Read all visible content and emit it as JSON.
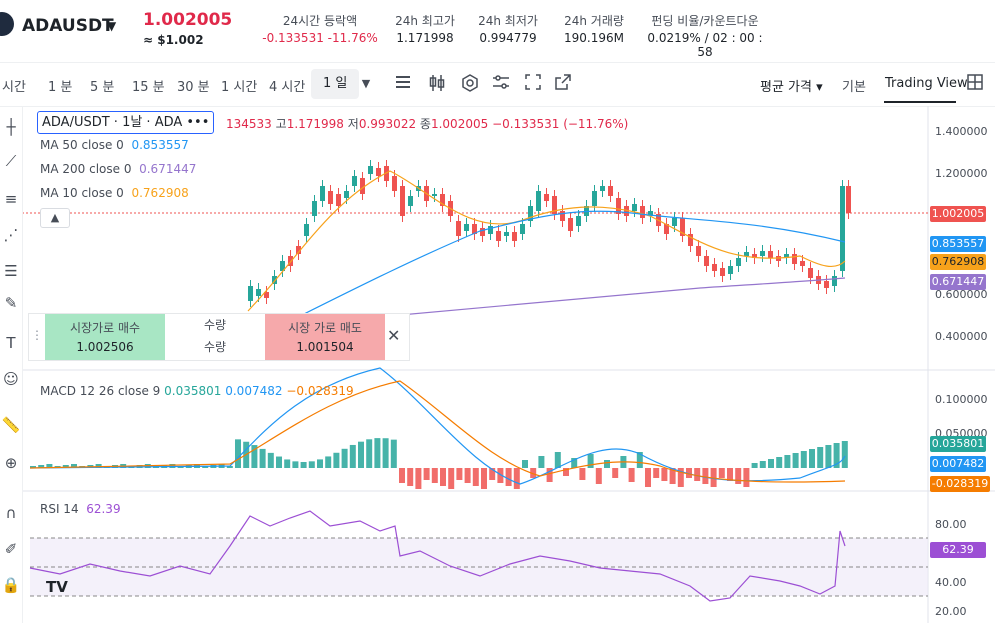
{
  "header": {
    "symbol": "ADAUSDT",
    "price": "1.002005",
    "price_usd": "≈ $1.002",
    "stats": [
      {
        "label": "24시간 등락액",
        "value": "-0.133531  -11.76%"
      },
      {
        "label": "24h 최고가",
        "value": "1.171998"
      },
      {
        "label": "24h 최저가",
        "value": "0.994779"
      },
      {
        "label": "24h 거래량",
        "value": "190.196M"
      },
      {
        "label": "펀딩 비율/카운트다운",
        "value": "0.0219% / 02 : 00 : 58"
      }
    ]
  },
  "toolbar": {
    "timeframes": [
      "시간",
      "1 분",
      "5 분",
      "15 분",
      "30 분",
      "1 시간",
      "4 시간"
    ],
    "active_timeframe": "1 일",
    "price_type": "평균 가격 ▾",
    "view_basic": "기본",
    "view_tradingview": "Trading View"
  },
  "legend": {
    "symbol_box": "ADA/USDT · 1날 · ADA  •••",
    "ohlc_prefix": "134533",
    "high_label": "고",
    "high": "1.171998",
    "low_label": "저",
    "low": "0.993022",
    "close_label": "종",
    "close": "1.002005",
    "change": "−0.133531 (−11.76%)",
    "ma50_label": "MA 50 close 0",
    "ma50": "0.853557",
    "ma200_label": "MA 200 close 0",
    "ma200": "0.671447",
    "ma10_label": "MA 10 close 0",
    "ma10": "0.762908"
  },
  "price_axis": [
    "1.400000",
    "1.200000",
    "0.600000",
    "0.400000"
  ],
  "price_tags": {
    "last": "1.002005",
    "ma50": "0.853557",
    "ma10": "0.762908",
    "ma200": "0.671447"
  },
  "trade_panel": {
    "buy_label": "시장가로 매수",
    "buy_value": "1.002506",
    "qty_label": "수량",
    "qty_value": "수량",
    "sell_label": "시장 가로 매도",
    "sell_value": "1.001504"
  },
  "macd": {
    "label": "MACD 12 26 close 9",
    "v1": "0.035801",
    "v2": "0.007482",
    "v3": "−0.028319",
    "axis": [
      "0.100000",
      "0.050000"
    ],
    "tags": [
      "0.035801",
      "0.007482",
      "-0.028319"
    ]
  },
  "rsi": {
    "label": "RSI 14",
    "value": "62.39",
    "axis": [
      "80.00",
      "40.00",
      "20.00"
    ],
    "tag": "62.39"
  },
  "colors": {
    "up": "#26a69a",
    "down": "#ef5350",
    "ma50": "#2196f3",
    "ma200": "#9575cd",
    "ma10": "#f7a21b",
    "rsi": "#9c4fd4"
  }
}
